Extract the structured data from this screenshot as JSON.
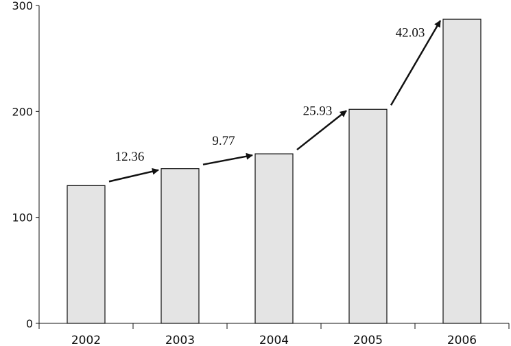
{
  "chart_data": {
    "type": "bar",
    "title": "",
    "xlabel": "",
    "ylabel": "",
    "categories": [
      "2002",
      "2003",
      "2004",
      "2005",
      "2006"
    ],
    "values": [
      130,
      146,
      160,
      202,
      287
    ],
    "ylim": [
      0,
      300
    ],
    "yticks": [
      "0",
      "100",
      "200",
      "300"
    ],
    "grid": false,
    "legend": "none",
    "bar_color": "#e4e4e4",
    "bar_edge_color": "#111111",
    "annotations": [
      {
        "from": "2002",
        "to": "2003",
        "label": "12.36"
      },
      {
        "from": "2003",
        "to": "2004",
        "label": "9.77"
      },
      {
        "from": "2004",
        "to": "2005",
        "label": "25.93"
      },
      {
        "from": "2005",
        "to": "2006",
        "label": "42.03"
      }
    ]
  }
}
